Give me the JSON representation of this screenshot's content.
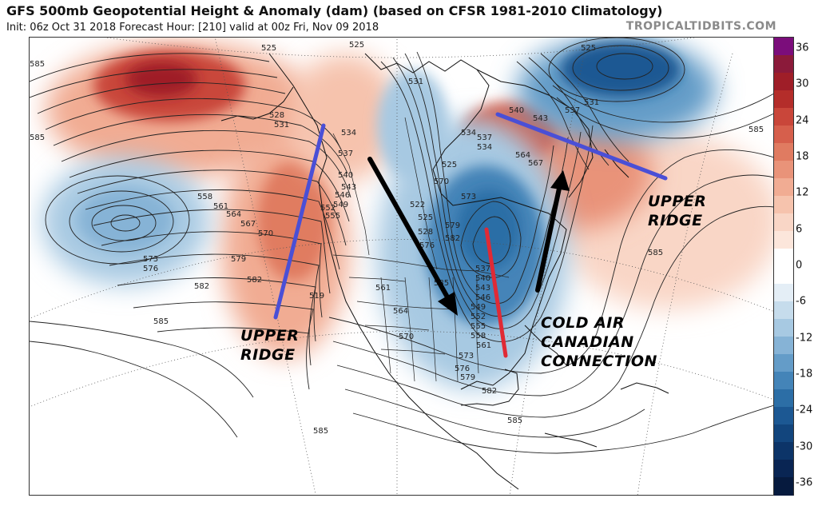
{
  "header": {
    "title": "GFS 500mb Geopotential Height & Anomaly (dam) (based on CFSR 1981-2010 Climatology)",
    "subtitle": "Init: 06z Oct 31 2018   Forecast Hour: [210]   valid at 00z Fri, Nov 09 2018",
    "brand": "TROPICALTIDBITS.COM"
  },
  "annotations": {
    "upper_ridge_west": [
      "UPPER",
      "RIDGE"
    ],
    "upper_ridge_east": [
      "UPPER",
      "RIDGE"
    ],
    "cold_air": [
      "COLD AIR",
      "CANADIAN",
      "CONNECTION"
    ]
  },
  "contour_labels": [
    "525",
    "525",
    "525",
    "531",
    "528",
    "534",
    "537",
    "540",
    "543",
    "546",
    "549",
    "552",
    "555",
    "558",
    "561",
    "564",
    "567",
    "570",
    "573",
    "576",
    "579",
    "582",
    "585",
    "585",
    "585",
    "585",
    "585",
    "585",
    "582",
    "561",
    "564",
    "570",
    "573",
    "576",
    "579",
    "582",
    "519",
    "522",
    "525",
    "528",
    "525",
    "531",
    "534",
    "537",
    "540",
    "543",
    "546",
    "549",
    "552",
    "555",
    "558",
    "561",
    "564",
    "567",
    "570",
    "573",
    "576",
    "579",
    "582",
    "585",
    "531",
    "537",
    "540",
    "543",
    "585",
    "537",
    "534"
  ],
  "colorbar": {
    "ticks": [
      "36",
      "30",
      "24",
      "18",
      "12",
      "6",
      "0",
      "-6",
      "-12",
      "-18",
      "-24",
      "-30",
      "-36"
    ],
    "colors": {
      "pos_36": "#7b0d7b",
      "pos_33": "#8b1a3a",
      "pos_30": "#9f1e28",
      "pos_27": "#b42d2a",
      "pos_24": "#c9463a",
      "pos_21": "#d65f4c",
      "pos_18": "#e07b61",
      "pos_15": "#e99379",
      "pos_12": "#f1ac93",
      "pos_9": "#f6c3ad",
      "pos_6": "#f9d6c6",
      "pos_3": "#fce6db",
      "neutral": "#ffffff",
      "neg_3": "#e4eef6",
      "neg_6": "#c6dcec",
      "neg_9": "#a7c9e2",
      "neg_12": "#86b3d6",
      "neg_15": "#649cc8",
      "neg_18": "#4484b8",
      "neg_21": "#2c6ea6",
      "neg_24": "#1c5893",
      "neg_27": "#12457d",
      "neg_30": "#0c3468",
      "neg_33": "#092553",
      "neg_36": "#061a3e"
    }
  },
  "arrows": {
    "west_ridge_axis": "#4a4fd6",
    "east_ridge_axis": "#4a4fd6",
    "trough_axis": "#e02a35",
    "flow_arrows": "#000000"
  }
}
